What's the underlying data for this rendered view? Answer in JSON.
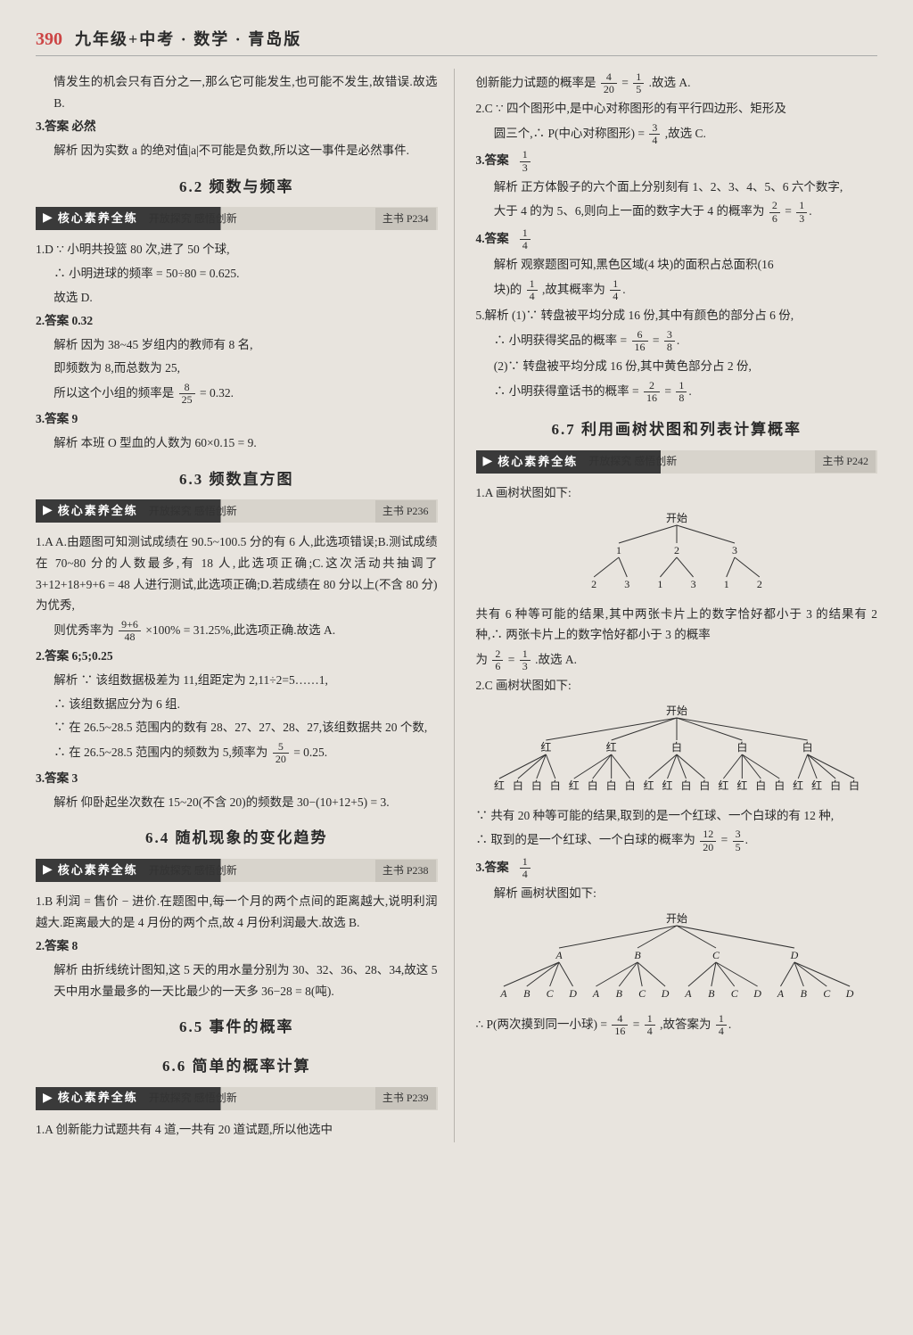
{
  "header": {
    "page_number": "390",
    "title": "九年级+中考 · 数学 · 青岛版"
  },
  "ribbon": {
    "arrow": "▶",
    "title": "核心素养全练",
    "sub": "开放探究  感悟创新",
    "page_prefix": "主书 P"
  },
  "sections": {
    "s62": {
      "title": "6.2  频数与频率",
      "page": "234"
    },
    "s63": {
      "title": "6.3  频数直方图",
      "page": "236"
    },
    "s64": {
      "title": "6.4  随机现象的变化趋势",
      "page": "238"
    },
    "s65": {
      "title": "6.5  事件的概率"
    },
    "s66": {
      "title": "6.6  简单的概率计算",
      "page": "239"
    },
    "s67": {
      "title": "6.7  利用画树状图和列表计算概率",
      "page": "242"
    }
  },
  "left": {
    "intro1": "情发生的机会只有百分之一,那么它可能发生,也可能不发生,故错误.故选 B.",
    "q3a": "3.答案  必然",
    "q3b": "解析  因为实数 a 的绝对值|a|不可能是负数,所以这一事件是必然事件.",
    "s62_1a": "1.D  ∵ 小明共投篮 80 次,进了 50 个球,",
    "s62_1b": "∴ 小明进球的频率 = 50÷80 = 0.625.",
    "s62_1c": "故选 D.",
    "s62_2a": "2.答案  0.32",
    "s62_2b": "解析  因为 38~45 岁组内的教师有 8 名,",
    "s62_2c": "即频数为 8,而总数为 25,",
    "s62_2d_pre": "所以这个小组的频率是",
    "s62_2d_post": "= 0.32.",
    "s62_3a": "3.答案  9",
    "s62_3b": "解析  本班 O 型血的人数为 60×0.15 = 9.",
    "s63_1a": "1.A  A.由题图可知测试成绩在 90.5~100.5 分的有 6 人,此选项错误;B.测试成绩在 70~80 分的人数最多,有 18 人,此选项正确;C.这次活动共抽调了 3+12+18+9+6 = 48 人进行测试,此选项正确;D.若成绩在 80 分以上(不含 80 分)为优秀,",
    "s63_1b_pre": "则优秀率为",
    "s63_1b_post": "×100% = 31.25%,此选项正确.故选 A.",
    "s63_2a": "2.答案  6;5;0.25",
    "s63_2b": "解析  ∵ 该组数据极差为 11,组距定为 2,11÷2=5……1,",
    "s63_2c": "∴ 该组数据应分为 6 组.",
    "s63_2d": "∵ 在 26.5~28.5 范围内的数有 28、27、27、28、27,该组数据共 20 个数,",
    "s63_2e_pre": "∴ 在 26.5~28.5 范围内的频数为 5,频率为",
    "s63_2e_post": "= 0.25.",
    "s63_3a": "3.答案  3",
    "s63_3b": "解析  仰卧起坐次数在 15~20(不含 20)的频数是 30−(10+12+5) = 3.",
    "s64_1": "1.B  利润 = 售价 − 进价.在题图中,每一个月的两个点间的距离越大,说明利润越大.距离最大的是 4 月份的两个点,故 4 月份利润最大.故选 B.",
    "s64_2a": "2.答案  8",
    "s64_2b": "解析  由折线统计图知,这 5 天的用水量分别为 30、32、36、28、34,故这 5 天中用水量最多的一天比最少的一天多 36−28 = 8(吨).",
    "s66_1": "1.A  创新能力试题共有 4 道,一共有 20 道试题,所以他选中"
  },
  "right": {
    "top_pre": "创新能力试题的概率是",
    "top_post": ".故选 A.",
    "q2a": "2.C  ∵ 四个图形中,是中心对称图形的有平行四边形、矩形及",
    "q2b_pre": "圆三个,∴ P(中心对称图形) =",
    "q2b_post": ",故选 C.",
    "q3a": "3.答案",
    "q3b": "解析  正方体骰子的六个面上分别刻有 1、2、3、4、5、6 六个数字,",
    "q3c_pre": "大于 4 的为 5、6,则向上一面的数字大于 4 的概率为",
    "q4a": "4.答案",
    "q4b": "解析  观察题图可知,黑色区域(4 块)的面积占总面积(16",
    "q4c_pre": "块)的",
    "q4c_mid": ",故其概率为",
    "q5a": "5.解析  (1)∵ 转盘被平均分成 16 份,其中有颜色的部分占 6 份,",
    "q5b_pre": "∴ 小明获得奖品的概率 =",
    "q5c": "(2)∵ 转盘被平均分成 16 份,其中黄色部分占 2 份,",
    "q5d_pre": "∴ 小明获得童话书的概率 =",
    "s67_1a": "1.A  画树状图如下:",
    "tree1": {
      "start": "开始",
      "l1": [
        "1",
        "2",
        "3"
      ],
      "l2": [
        "2",
        "3",
        "1",
        "3",
        "1",
        "2"
      ]
    },
    "s67_1b": "共有 6 种等可能的结果,其中两张卡片上的数字恰好都小于 3 的结果有 2 种,∴ 两张卡片上的数字恰好都小于 3 的概率",
    "s67_1c_pre": "为",
    "s67_1c_post": ".故选 A.",
    "s67_2a": "2.C  画树状图如下:",
    "tree2": {
      "start": "开始",
      "l1": [
        "红",
        "红",
        "白",
        "白",
        "白"
      ],
      "l2": [
        "红",
        "白",
        "白",
        "白",
        "红",
        "白",
        "白",
        "白",
        "红",
        "红",
        "白",
        "白",
        "红",
        "红",
        "白",
        "白",
        "红",
        "红",
        "白",
        "白"
      ]
    },
    "s67_2b": "∵ 共有 20 种等可能的结果,取到的是一个红球、一个白球的有 12 种,",
    "s67_2c_pre": "∴ 取到的是一个红球、一个白球的概率为",
    "s67_3a": "3.答案",
    "s67_3b": "解析  画树状图如下:",
    "tree3": {
      "start": "开始",
      "l1": [
        "A",
        "B",
        "C",
        "D"
      ],
      "l2": [
        "A",
        "B",
        "C",
        "D",
        "A",
        "B",
        "C",
        "D",
        "A",
        "B",
        "C",
        "D",
        "A",
        "B",
        "C",
        "D"
      ]
    },
    "s67_3c_pre": "∴ P(两次摸到同一小球) =",
    "s67_3c_post": ",故答案为"
  },
  "tree_style": {
    "line_color": "#333",
    "line_width": 1,
    "label_fontsize": 12
  }
}
